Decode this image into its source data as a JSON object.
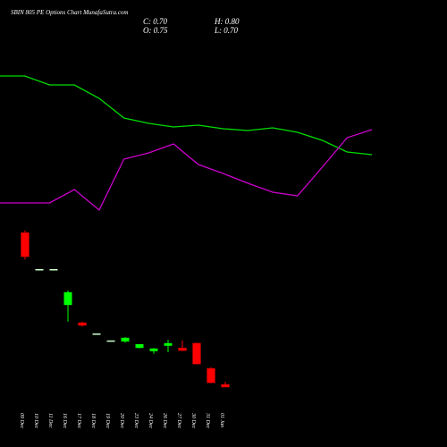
{
  "chart_data": [
    {
      "type": "line",
      "x": [
        0,
        1,
        2,
        3,
        4,
        5,
        6,
        7,
        8,
        9,
        10,
        11,
        12,
        13,
        14,
        15
      ],
      "xlim": [
        0,
        15
      ],
      "ylim": [
        0,
        100
      ],
      "series": [
        {
          "color": "#00dd00",
          "values": [
            86,
            86,
            82,
            82,
            76,
            67.2,
            64.8,
            63.2,
            64,
            62.4,
            61.6,
            62.8,
            60.8,
            57.2,
            52,
            50.8
          ]
        },
        {
          "color": "#cc00cc",
          "values": [
            29.2,
            29.2,
            29.2,
            35.2,
            26,
            48.8,
            51.6,
            55.6,
            46.4,
            42.4,
            38,
            34,
            32.4,
            45.2,
            58.4,
            62
          ]
        }
      ]
    },
    {
      "type": "candlestick",
      "title": "SBIN 805 PE Options  Chart MunafaSutra.com",
      "close_label": "C: 0.70",
      "high_label": "H: 0.80",
      "open_label": "O: 0.75",
      "low_label": "L: 0.70",
      "categories": [
        "09 Dec",
        "10 Dec",
        "11 Dec",
        "16 Dec",
        "17 Dec",
        "18 Dec",
        "19 Dec",
        "20 Dec",
        "23 Dec",
        "24 Dec",
        "26 Dec",
        "27 Dec",
        "30 Dec",
        "31 Dec",
        "01 Jan"
      ],
      "open": [
        3.58,
        2.9,
        2.9,
        2.23,
        1.9,
        1.7,
        1.57,
        1.55,
        1.43,
        1.37,
        1.47,
        1.43,
        1.52,
        1.05,
        0.75
      ],
      "high": [
        3.62,
        2.9,
        2.9,
        2.5,
        1.92,
        1.7,
        1.57,
        1.63,
        1.5,
        1.43,
        1.58,
        1.57,
        1.53,
        1.07,
        0.8
      ],
      "low": [
        3.08,
        2.9,
        2.9,
        1.92,
        1.83,
        1.7,
        1.57,
        1.53,
        1.42,
        1.32,
        1.35,
        1.37,
        1.12,
        0.77,
        0.7
      ],
      "close": [
        3.13,
        2.9,
        2.9,
        2.47,
        1.85,
        1.7,
        1.57,
        1.62,
        1.5,
        1.42,
        1.52,
        1.38,
        1.13,
        0.78,
        0.7
      ],
      "up_color": "#00ff00",
      "down_color": "#ff0000",
      "flat_color": "#ccffcc",
      "ylim": [
        0.5,
        3.75
      ]
    }
  ]
}
